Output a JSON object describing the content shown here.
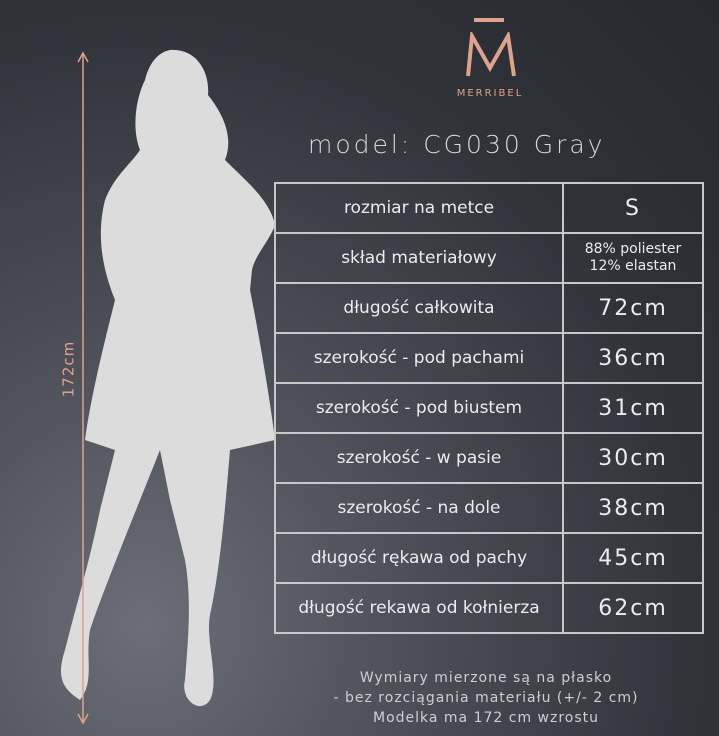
{
  "brand": {
    "name": "MERRIBEL",
    "accent": "#e0a28a"
  },
  "title": "model: CG030 Gray",
  "height_label": "172cm",
  "table": [
    {
      "label": "rozmiar na metce",
      "value": "S"
    },
    {
      "label": "skład materiałowy",
      "value": "88% poliester",
      "value2": "12% elastan"
    },
    {
      "label": "długość całkowita",
      "value": "72cm"
    },
    {
      "label": "szerokość - pod pachami",
      "value": "36cm"
    },
    {
      "label": "szerokość - pod biustem",
      "value": "31cm"
    },
    {
      "label": "szerokość - w pasie",
      "value": "30cm"
    },
    {
      "label": "szerokość - na dole",
      "value": "38cm"
    },
    {
      "label": "długość rękawa od pachy",
      "value": "45cm"
    },
    {
      "label": "długość rekawa od kołnierza",
      "value": "62cm"
    }
  ],
  "notes": [
    "Wymiary mierzone są na płasko",
    "- bez rozciągania materiału (+/- 2 cm)",
    "Modelka ma 172 cm wzrostu"
  ]
}
